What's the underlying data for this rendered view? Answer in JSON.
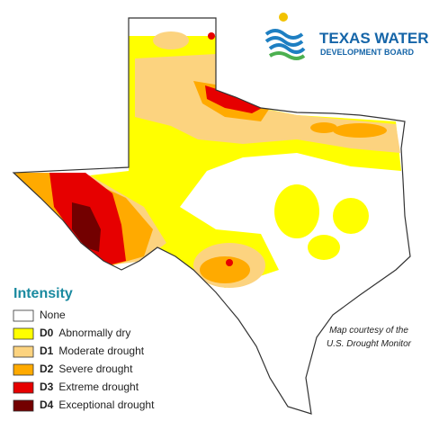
{
  "logo": {
    "line1": "TEXAS WATER",
    "line2": "DEVELOPMENT BOARD"
  },
  "legend": {
    "title": "Intensity",
    "items": [
      {
        "code": "",
        "label": "None",
        "color": "#ffffff"
      },
      {
        "code": "D0",
        "label": "Abnormally dry",
        "color": "#ffff00"
      },
      {
        "code": "D1",
        "label": "Moderate drought",
        "color": "#fcd37f"
      },
      {
        "code": "D2",
        "label": "Severe drought",
        "color": "#ffaa00"
      },
      {
        "code": "D3",
        "label": "Extreme drought",
        "color": "#e60000"
      },
      {
        "code": "D4",
        "label": "Exceptional drought",
        "color": "#730000"
      }
    ]
  },
  "caption": {
    "line1": "Map courtesy of the",
    "line2": "U.S. Drought Monitor"
  }
}
